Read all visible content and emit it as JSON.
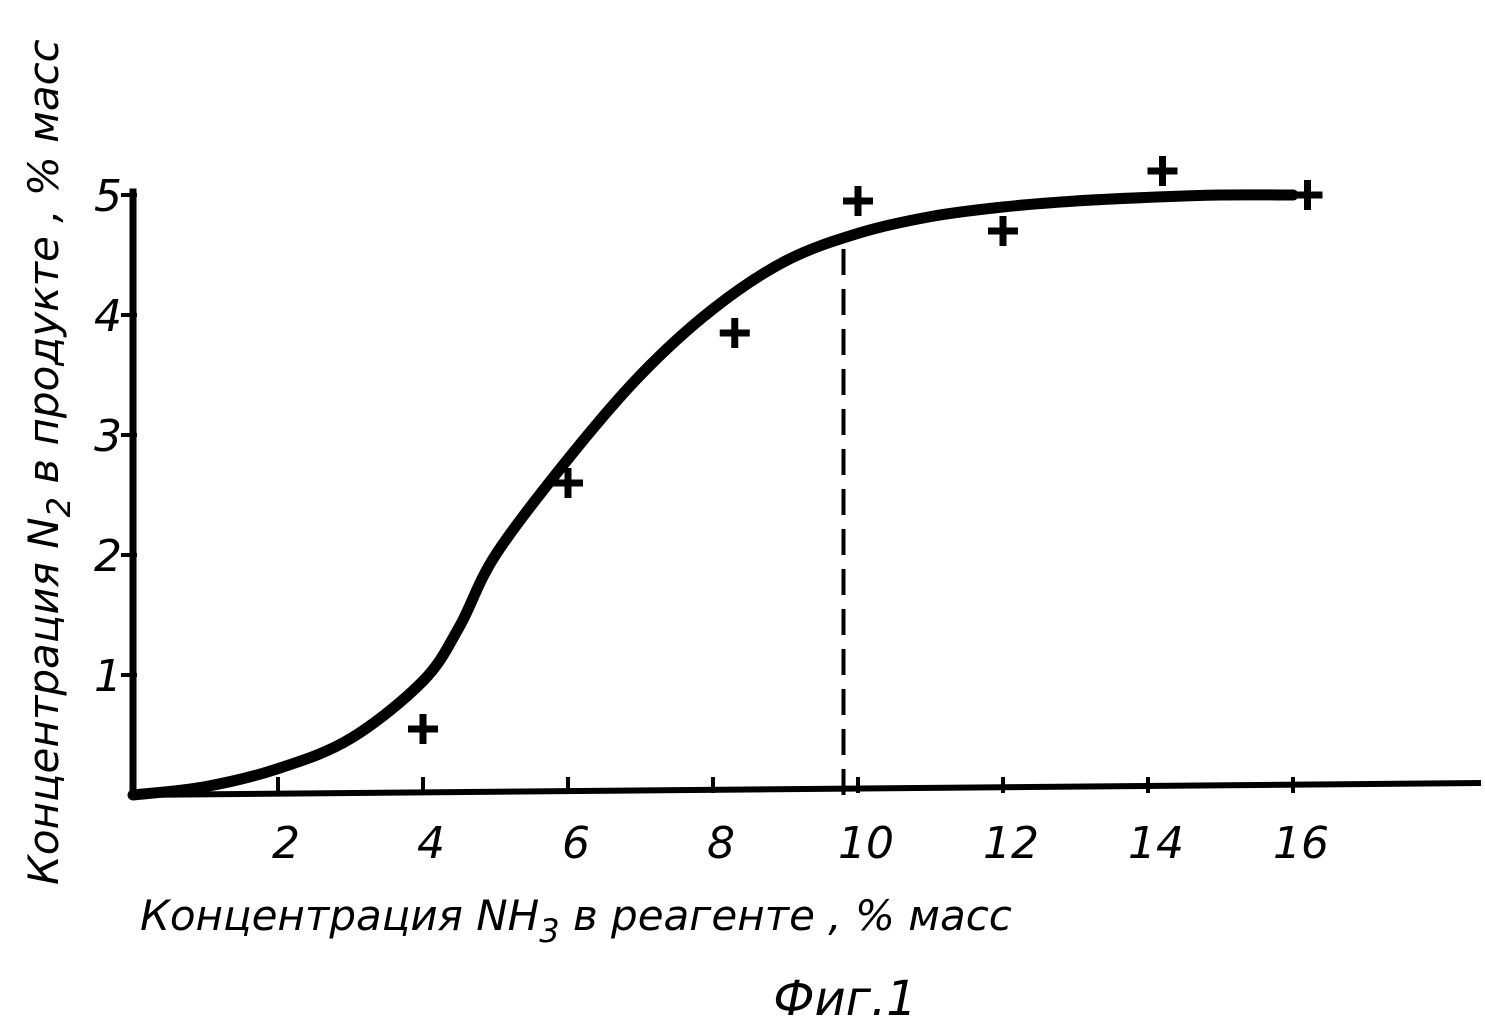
{
  "chart_data": {
    "type": "line",
    "title": "",
    "caption": "Фиг.1",
    "xlabel": {
      "prefix": "Концентрация NH",
      "subscript": "3",
      "suffix": " в реагенте  , % масс"
    },
    "ylabel": {
      "prefix": "Концентрация N",
      "subscript": "2",
      "suffix": " в продукте , % масс"
    },
    "xlim": [
      0,
      18
    ],
    "ylim": [
      0,
      5
    ],
    "x_ticks": [
      2,
      4,
      6,
      8,
      10,
      12,
      14,
      16
    ],
    "y_ticks": [
      1,
      2,
      3,
      4,
      5
    ],
    "grid": false,
    "series": [
      {
        "type": "line",
        "x": [
          0,
          1,
          2,
          3,
          4,
          4.5,
          5,
          6,
          7,
          8,
          9,
          10,
          11,
          12,
          13,
          14,
          15,
          16
        ],
        "y": [
          0,
          0.07,
          0.22,
          0.47,
          0.95,
          1.4,
          2.0,
          2.8,
          3.5,
          4.05,
          4.45,
          4.68,
          4.82,
          4.9,
          4.95,
          4.98,
          5.0,
          5.0
        ]
      },
      {
        "type": "scatter",
        "marker": "+",
        "x": [
          4,
          6,
          8.3,
          10,
          12,
          14.2,
          16.2
        ],
        "y": [
          0.55,
          2.6,
          3.85,
          4.95,
          4.7,
          5.2,
          5.0
        ]
      }
    ],
    "reference_line": {
      "x": 9.8,
      "y": [
        0,
        4.62
      ],
      "style": "dashed"
    }
  }
}
